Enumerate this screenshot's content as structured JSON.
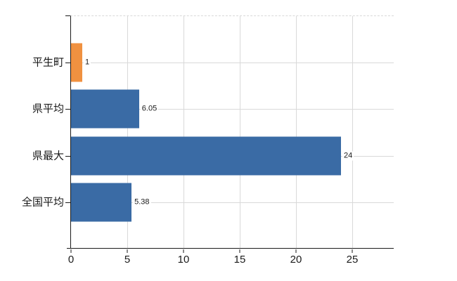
{
  "chart_data": {
    "type": "bar",
    "orientation": "horizontal",
    "title": "",
    "xlabel": "",
    "ylabel": "",
    "categories": [
      "平生町",
      "県平均",
      "県最大",
      "全国平均"
    ],
    "values": [
      1,
      6.05,
      24,
      5.38
    ],
    "value_labels": [
      "1",
      "6.05",
      "24",
      "5.38"
    ],
    "bar_colors": [
      "#f09140",
      "#3a6ba5",
      "#3a6ba5",
      "#3a6ba5"
    ],
    "x_ticks": [
      0,
      5,
      10,
      15,
      20,
      25
    ],
    "xlim": [
      0,
      28.7
    ],
    "grid": true,
    "legend": false
  },
  "colors": {
    "highlight_bar": "#f09140",
    "default_bar": "#3a6ba5",
    "gridline": "#d9d9d9",
    "axis": "#1a1a1a",
    "text": "#1a1a1a",
    "background": "#ffffff"
  }
}
